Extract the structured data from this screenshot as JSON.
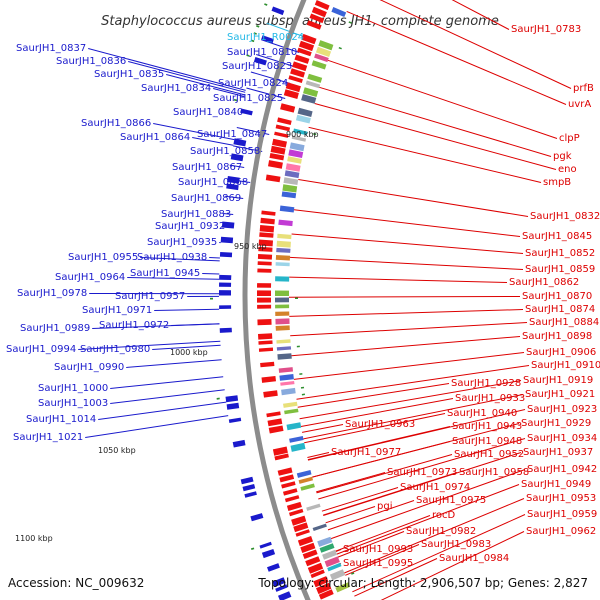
{
  "title": "Staphylococcus aureus subsp. aureus JH1, complete genome",
  "footer": {
    "accession": "Accession: NC_009632",
    "summary": "Topology: circular; Length: 2,906,507 bp; Genes: 2,827"
  },
  "colors": {
    "forward_label": "#1a1acc",
    "reverse_label": "#dd0000",
    "rna_label": "#22b8e6",
    "backbone": "#8c8c8c"
  },
  "scale_marks": [
    "900 kbp",
    "950 kbp",
    "1000 kbp",
    "1050 kbp",
    "1100 kbp"
  ],
  "left_labels": [
    "SaurJH1_0837",
    "SaurJH1_0836",
    "SaurJH1_0835",
    "SaurJH1_0834",
    "SaurJH1_0866",
    "SaurJH1_0864",
    "SaurJH1_0883",
    "SaurJH1_0932",
    "SaurJH1_0935",
    "SaurJH1_0955",
    "SaurJH1_0938",
    "SaurJH1_0964",
    "SaurJH1_0945",
    "SaurJH1_0978",
    "SaurJH1_0957",
    "SaurJH1_0971",
    "SaurJH1_0972",
    "SaurJH1_0989",
    "SaurJH1_0994",
    "SaurJH1_0980",
    "SaurJH1_0990",
    "SaurJH1_1000",
    "SaurJH1_1003",
    "SaurJH1_1014",
    "SaurJH1_1021"
  ],
  "center_labels": [
    "SaurJH1_0810",
    "SaurJH1_0823",
    "SaurJH1_0824",
    "SaurJH1_0825",
    "SaurJH1_0840",
    "SaurJH1_0847",
    "SaurJH1_0858",
    "SaurJH1_0867",
    "SaurJH1_0868",
    "SaurJH1_0869"
  ],
  "rna_label": "SaurJH1_R0024",
  "right_labels": [
    "SaurJH1_0783",
    "prfB",
    "uvrA",
    "clpP",
    "pgk",
    "eno",
    "smpB",
    "SaurJH1_0832",
    "SaurJH1_0845",
    "SaurJH1_0852",
    "SaurJH1_0859",
    "SaurJH1_0862",
    "SaurJH1_0870",
    "SaurJH1_0874",
    "SaurJH1_0884",
    "SaurJH1_0898",
    "SaurJH1_0906",
    "SaurJH1_0910",
    "SaurJH1_0919",
    "SaurJH1_0921",
    "SaurJH1_0923",
    "SaurJH1_0934",
    "SaurJH1_0937",
    "SaurJH1_0942",
    "SaurJH1_0949",
    "SaurJH1_0953",
    "SaurJH1_0959",
    "SaurJH1_0962"
  ],
  "inner_right_labels": [
    "SaurJH1_0928",
    "SaurJH1_0933",
    "SaurJH1_0940",
    "SaurJH1_0943",
    "SaurJH1_0948",
    "SaurJH1_0929",
    "SaurJH1_0952",
    "SaurJH1_0963",
    "SaurJH1_0958",
    "SaurJH1_0977",
    "SaurJH1_0973",
    "SaurJH1_0974",
    "SaurJH1_0975",
    "rocD",
    "pgi",
    "SaurJH1_0982",
    "SaurJH1_0983",
    "SaurJH1_0993",
    "SaurJH1_0984",
    "SaurJH1_0995"
  ]
}
